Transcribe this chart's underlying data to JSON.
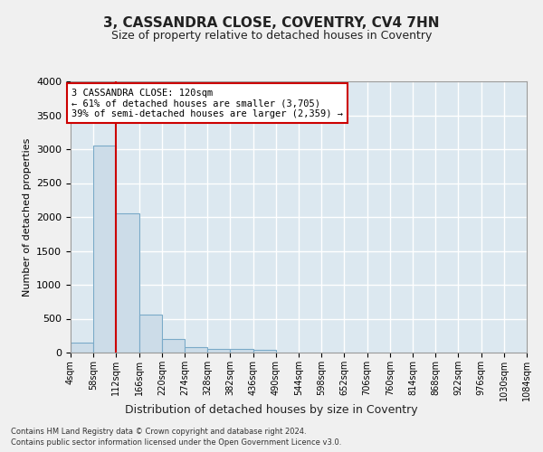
{
  "title1": "3, CASSANDRA CLOSE, COVENTRY, CV4 7HN",
  "title2": "Size of property relative to detached houses in Coventry",
  "xlabel": "Distribution of detached houses by size in Coventry",
  "ylabel": "Number of detached properties",
  "footer1": "Contains HM Land Registry data © Crown copyright and database right 2024.",
  "footer2": "Contains public sector information licensed under the Open Government Licence v3.0.",
  "bin_edges": [
    4,
    58,
    112,
    166,
    220,
    274,
    328,
    382,
    436,
    490,
    544,
    598,
    652,
    706,
    760,
    814,
    868,
    922,
    976,
    1030,
    1084
  ],
  "bar_heights": [
    150,
    3050,
    2050,
    560,
    200,
    75,
    60,
    50,
    40,
    5,
    0,
    0,
    0,
    0,
    0,
    0,
    0,
    0,
    0,
    0
  ],
  "property_bin": 2,
  "bar_color": "#ccdce8",
  "bar_edge_color": "#7aaac8",
  "annotation_text": "3 CASSANDRA CLOSE: 120sqm\n← 61% of detached houses are smaller (3,705)\n39% of semi-detached houses are larger (2,359) →",
  "annotation_box_color": "#ffffff",
  "annotation_box_edge": "#cc0000",
  "red_line_color": "#cc0000",
  "ylim": [
    0,
    4000
  ],
  "background_color": "#dce8f0",
  "grid_color": "#ffffff",
  "tick_labels": [
    "4sqm",
    "58sqm",
    "112sqm",
    "166sqm",
    "220sqm",
    "274sqm",
    "328sqm",
    "382sqm",
    "436sqm",
    "490sqm",
    "544sqm",
    "598sqm",
    "652sqm",
    "706sqm",
    "760sqm",
    "814sqm",
    "868sqm",
    "922sqm",
    "976sqm",
    "1030sqm",
    "1084sqm"
  ]
}
